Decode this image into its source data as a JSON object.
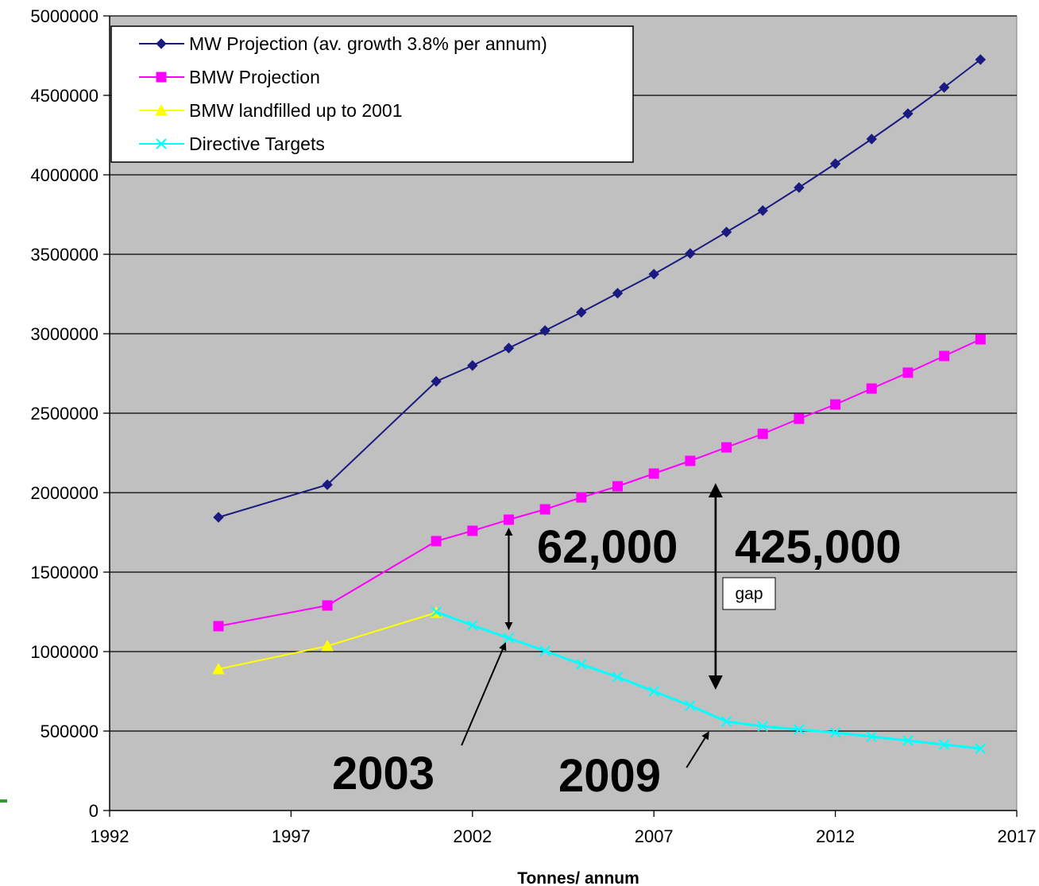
{
  "chart_data": {
    "type": "line",
    "title": "",
    "xlabel": "Tonnes/ annum",
    "ylabel": "",
    "xlim": [
      1992,
      2017
    ],
    "ylim": [
      0,
      5000000
    ],
    "x_ticks": [
      1992,
      1997,
      2002,
      2007,
      2012,
      2017
    ],
    "y_ticks": [
      0,
      500000,
      1000000,
      1500000,
      2000000,
      2500000,
      3000000,
      3500000,
      4000000,
      4500000,
      5000000
    ],
    "x_tick_labels": [
      "1992",
      "1997",
      "2002",
      "2007",
      "2012",
      "2017"
    ],
    "y_tick_labels": [
      "0",
      "500000",
      "1000000",
      "1500000",
      "2000000",
      "2500000",
      "3000000",
      "3500000",
      "4000000",
      "4500000",
      "5000000"
    ],
    "grid": true,
    "plot_background": "#c0c0c0",
    "legend_placement": "top-left",
    "series": [
      {
        "name": "MW Projection (av. growth 3.8% per annum)",
        "color": "#1a1a80",
        "marker": "diamond",
        "x": [
          1995,
          1998,
          2001,
          2002,
          2003,
          2004,
          2005,
          2006,
          2007,
          2008,
          2009,
          2010,
          2011,
          2012,
          2013,
          2014,
          2015,
          2016
        ],
        "y": [
          1845000,
          2050000,
          2700000,
          2800000,
          2910000,
          3020000,
          3135000,
          3255000,
          3375000,
          3505000,
          3640000,
          3775000,
          3920000,
          4070000,
          4225000,
          4385000,
          4550000,
          4725000
        ]
      },
      {
        "name": "BMW Projection",
        "color": "#ff00ff",
        "marker": "square",
        "x": [
          1995,
          1998,
          2001,
          2002,
          2003,
          2004,
          2005,
          2006,
          2007,
          2008,
          2009,
          2010,
          2011,
          2012,
          2013,
          2014,
          2015,
          2016
        ],
        "y": [
          1160000,
          1290000,
          1695000,
          1760000,
          1830000,
          1895000,
          1970000,
          2040000,
          2120000,
          2200000,
          2285000,
          2370000,
          2465000,
          2555000,
          2655000,
          2755000,
          2860000,
          2965000
        ]
      },
      {
        "name": "BMW landfilled up to 2001",
        "color": "#ffff00",
        "marker": "triangle",
        "x": [
          1995,
          1998,
          2001
        ],
        "y": [
          890000,
          1035000,
          1245000
        ]
      },
      {
        "name": "Directive Targets",
        "color": "#00ffff",
        "marker": "x",
        "x": [
          2001,
          2002,
          2003,
          2004,
          2005,
          2006,
          2007,
          2008,
          2009,
          2010,
          2011,
          2012,
          2013,
          2014,
          2015,
          2016
        ],
        "y": [
          1250000,
          1165000,
          1085000,
          1005000,
          920000,
          840000,
          750000,
          660000,
          560000,
          530000,
          510000,
          490000,
          465000,
          440000,
          415000,
          390000
        ]
      }
    ],
    "annotations": {
      "label_62000": "62,000",
      "label_425000": "425,000",
      "label_2003": "2003",
      "label_2009": "2009",
      "label_gap": "gap",
      "arrow_62000": {
        "x": 2003,
        "y_top": 1830000,
        "y_bottom": 1085000
      },
      "arrow_425000": {
        "x": 2008.7,
        "y_top": 2120000,
        "y_bottom": 700000
      },
      "pointer_2003": {
        "from_x": 2001.7,
        "from_y": 410000,
        "to_x": 2002.9,
        "to_y": 1050000
      },
      "pointer_2009": {
        "from_x": 2007.9,
        "from_y": 270000,
        "to_x": 2008.5,
        "to_y": 490000
      }
    }
  }
}
